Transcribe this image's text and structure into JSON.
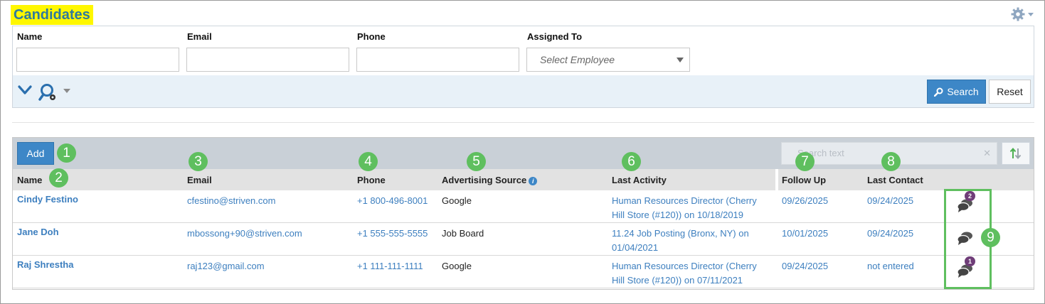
{
  "page": {
    "title": "Candidates"
  },
  "filters": {
    "name_label": "Name",
    "email_label": "Email",
    "phone_label": "Phone",
    "assigned_label": "Assigned To",
    "assigned_placeholder": "Select Employee",
    "search_label": "Search",
    "reset_label": "Reset"
  },
  "grid": {
    "add_label": "Add",
    "filter_placeholder": "Search text",
    "columns": {
      "name": "Name",
      "email": "Email",
      "phone": "Phone",
      "source": "Advertising Source",
      "activity": "Last Activity",
      "follow_up": "Follow Up",
      "last_contact": "Last Contact"
    },
    "rows": [
      {
        "name": "Cindy Festino",
        "email": "cfestino@striven.com",
        "phone": "+1 800-496-8001",
        "source": "Google",
        "activity_line1": "Human Resources Director (Cherry",
        "activity_line2": "Hill Store (#120)) on 10/18/2019",
        "follow_up": "09/26/2025",
        "last_contact": "09/24/2025",
        "comments": "2"
      },
      {
        "name": "Jane Doh",
        "email": "mbossong+90@striven.com",
        "phone": "+1 555-555-5555",
        "source": "Job Board",
        "activity_line1": "11.24 Job Posting (Bronx, NY) on",
        "activity_line2": "01/04/2021",
        "follow_up": "10/01/2025",
        "last_contact": "09/24/2025",
        "comments": ""
      },
      {
        "name": "Raj Shrestha",
        "email": "raj123@gmail.com",
        "phone": "+1 111-111-1111",
        "source": "Google",
        "activity_line1": "Human Resources Director (Cherry",
        "activity_line2": "Hill Store (#120)) on 07/11/2021",
        "follow_up": "09/24/2025",
        "last_contact": "not entered",
        "comments": "1"
      }
    ]
  },
  "annotations": [
    "1",
    "2",
    "3",
    "4",
    "5",
    "6",
    "7",
    "8",
    "9"
  ],
  "colors": {
    "accent": "#3d87c7",
    "title_highlight": "#fff700",
    "title_text": "#2e7a9e",
    "annotation": "#5fbf5f",
    "badge": "#6f3d78",
    "link": "#3d7fbf"
  },
  "icons": {
    "settings": "gear-icon",
    "expand": "chevron-down-icon",
    "advanced_search": "search-gear-icon",
    "sort": "sort-arrows-icon",
    "comments": "chat-bubbles-icon",
    "info": "info-icon"
  }
}
